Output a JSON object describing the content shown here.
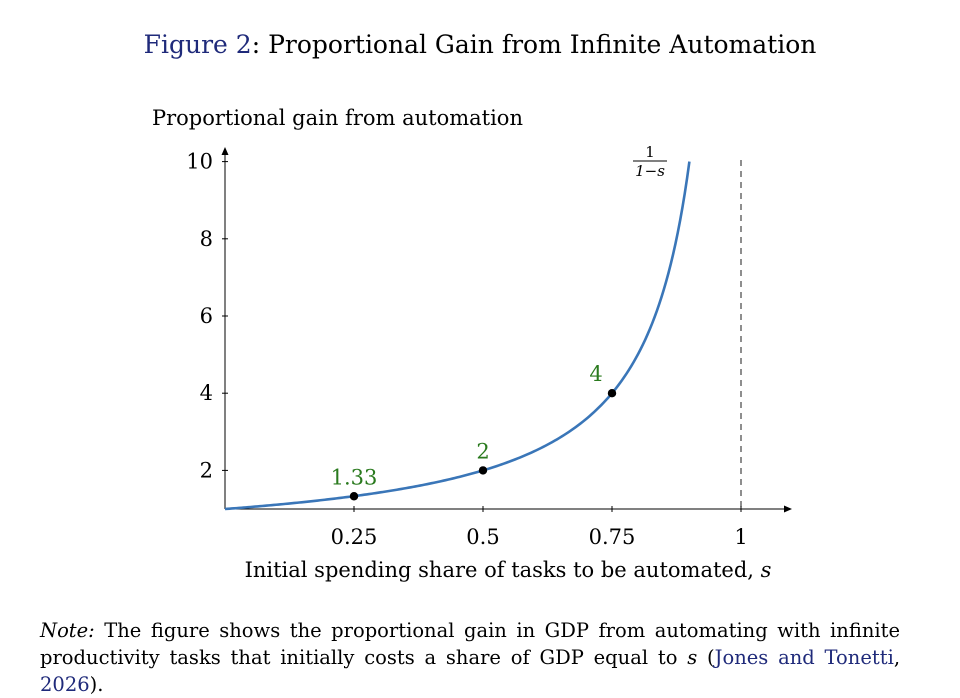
{
  "title": {
    "label": "Figure 2",
    "separator": ": ",
    "text": "Proportional Gain from Infinite Automation"
  },
  "chart_data": {
    "type": "line",
    "title": "Proportional Gain from Infinite Automation",
    "ylabel": "Proportional gain from automation",
    "xlabel": "Initial spending share of tasks to be automated, ",
    "xlabel_var": "s",
    "xlim": [
      0,
      1.1
    ],
    "ylim": [
      1,
      10
    ],
    "xticks": [
      0.25,
      0.5,
      0.75,
      1
    ],
    "xtick_labels": [
      "0.25",
      "0.5",
      "0.75",
      "1"
    ],
    "yticks": [
      2,
      4,
      6,
      8,
      10
    ],
    "ytick_labels": [
      "2",
      "4",
      "6",
      "8",
      "10"
    ],
    "grid": false,
    "series": [
      {
        "name": "1/(1-s)",
        "function": "1/(1-s)",
        "x_range": [
          0,
          0.9
        ],
        "color": "#3a76b8"
      }
    ],
    "curve_label": {
      "numerator": "1",
      "denominator": "1−s"
    },
    "points": [
      {
        "x": 0.25,
        "y": 1.33,
        "label": "1.33"
      },
      {
        "x": 0.5,
        "y": 2,
        "label": "2"
      },
      {
        "x": 0.75,
        "y": 4,
        "label": "4"
      }
    ],
    "point_label_color": "#2a7a1e",
    "asymptote": {
      "x": 1,
      "style": "dashed"
    }
  },
  "note": {
    "prefix": "Note:",
    "text": " The figure shows the proportional gain in GDP from automating with infinite productivity tasks that initially costs a share of GDP equal to ",
    "variable": "s",
    "open": " (",
    "cite_authors": "Jones and Tonetti",
    "comma": ", ",
    "cite_year": "2026",
    "close": ")."
  }
}
